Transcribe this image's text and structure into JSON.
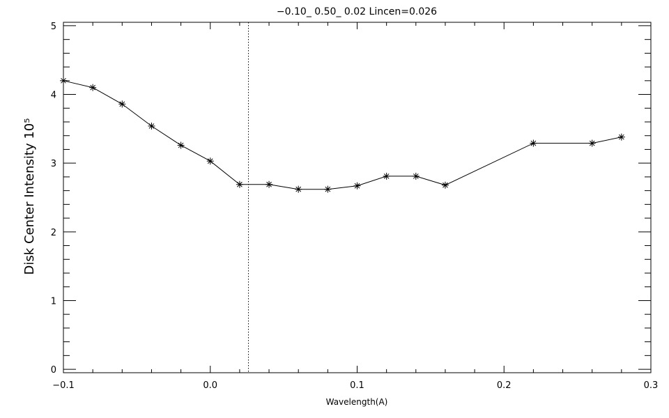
{
  "chart_data": {
    "type": "line",
    "title": "−0.10_ 0.50_ 0.02   Lincen=0.026",
    "xlabel": "Wavelength(A)",
    "ylabel": "Disk Center Intensity 10⁵",
    "xlim": [
      -0.1,
      0.3
    ],
    "ylim": [
      -0.05,
      5.05
    ],
    "x_ticks": [
      -0.1,
      0.0,
      0.1,
      0.2,
      0.3
    ],
    "x_tick_labels": [
      "−0.1",
      "0.0",
      "0.1",
      "0.2",
      "0.3"
    ],
    "y_ticks": [
      0,
      1,
      2,
      3,
      4,
      5
    ],
    "y_tick_labels": [
      "0",
      "1",
      "2",
      "3",
      "4",
      "5"
    ],
    "vertical_line_x": 0.026,
    "grid": false,
    "marker": "asterisk",
    "series": [
      {
        "x": [
          -0.1,
          -0.08,
          -0.06,
          -0.04,
          -0.02,
          0.0,
          0.02,
          0.04,
          0.06,
          0.08,
          0.1,
          0.12,
          0.14,
          0.16,
          0.22,
          0.26,
          0.28
        ],
        "y": [
          4.2,
          4.1,
          3.86,
          3.54,
          3.26,
          3.03,
          2.69,
          2.69,
          2.62,
          2.62,
          2.67,
          2.81,
          2.81,
          2.68,
          3.29,
          3.29,
          3.38
        ]
      }
    ]
  }
}
